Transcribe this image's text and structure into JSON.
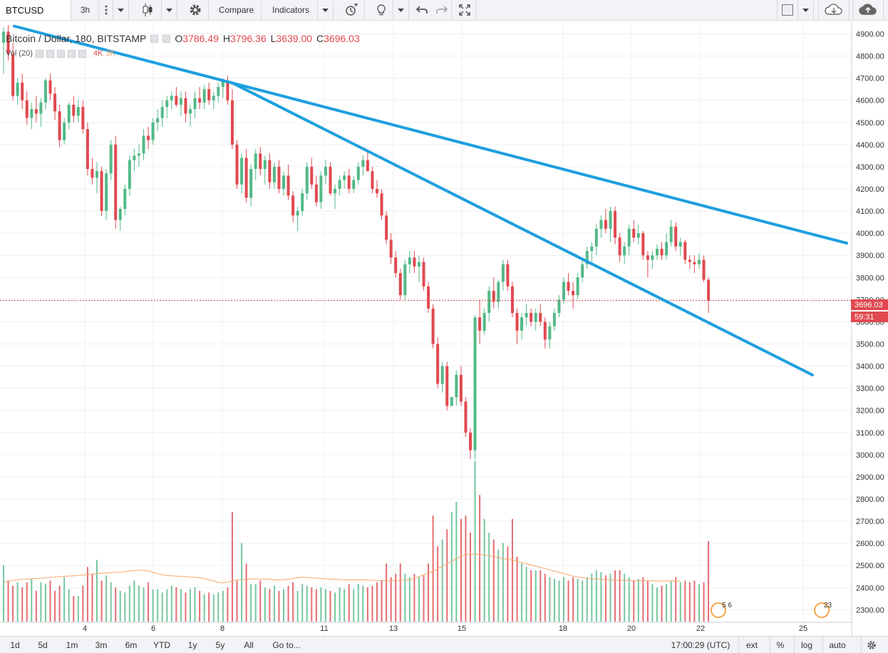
{
  "colors": {
    "up": "#53b987",
    "down": "#e0494f",
    "trend": "#1e9fde",
    "ma": "#f6a66a",
    "grid": "#eef0f3",
    "axis": "#333333"
  },
  "toolbar": {
    "symbol": "BTCUSD",
    "interval": "3h",
    "compare_label": "Compare",
    "indicators_label": "Indicators",
    "icons": [
      "more-icon",
      "dropdown-icon",
      "candles-icon",
      "settings-icon",
      "alert-icon",
      "lightbulb-icon",
      "undo-icon",
      "redo-icon",
      "fullscreen-icon",
      "layout-icon",
      "cloud-download-icon",
      "cloud-upload-icon"
    ]
  },
  "legend": {
    "title": "Bitcoin / Dollar, 180, BITSTAMP",
    "o_label": "O",
    "o": "3786.49",
    "h_label": "H",
    "h": "3796.36",
    "l_label": "L",
    "l": "3639.00",
    "c_label": "C",
    "c": "3696.03",
    "vol_label": "Vol (20)",
    "vol_a": "4K",
    "vol_b": "3K"
  },
  "price_axis": {
    "ticks": [
      4900,
      4800,
      4700,
      4600,
      4500,
      4400,
      4300,
      4200,
      4100,
      4000,
      3900,
      3800,
      3700,
      3600,
      3500,
      3400,
      3300,
      3200,
      3100,
      3000,
      2900,
      2800,
      2700,
      2600,
      2500,
      2400,
      2300
    ],
    "tick_labels": [
      "4900.00",
      "4800.00",
      "4700.00",
      "4600.00",
      "4500.00",
      "4400.00",
      "4300.00",
      "4200.00",
      "4100.00",
      "4000.00",
      "3900.00",
      "3800.00",
      "3700.00",
      "3600.00",
      "3500.00",
      "3400.00",
      "3300.00",
      "3200.00",
      "3100.00",
      "3000.00",
      "2900.00",
      "2800.00",
      "2700.00",
      "2600.00",
      "2500.00",
      "2400.00",
      "2300.00"
    ],
    "last_price": "3696.03",
    "countdown": "59:31"
  },
  "time_axis": {
    "labels": [
      "4",
      "6",
      "8",
      "11",
      "13",
      "15",
      "18",
      "20",
      "22",
      "25"
    ]
  },
  "events": [
    {
      "count": "5 6"
    },
    {
      "count": "23"
    }
  ],
  "bottombar": {
    "ranges": [
      "1d",
      "5d",
      "1m",
      "3m",
      "6m",
      "YTD",
      "1y",
      "5y",
      "All"
    ],
    "goto_label": "Go to...",
    "time_label": "17:00:29 (UTC)",
    "ext_label": "ext",
    "percent_label": "%",
    "log_label": "log",
    "auto_label": "auto"
  },
  "chart_data": {
    "type": "candlestick",
    "symbol": "BTCUSD",
    "interval": "180",
    "price_range": [
      2270,
      4960
    ],
    "candles": [
      [
        4860,
        4930,
        4720,
        4910,
        330
      ],
      [
        4910,
        4940,
        4780,
        4810,
        240
      ],
      [
        4810,
        4860,
        4600,
        4620,
        210
      ],
      [
        4620,
        4700,
        4580,
        4680,
        230
      ],
      [
        4680,
        4720,
        4560,
        4600,
        200
      ],
      [
        4600,
        4640,
        4490,
        4520,
        230
      ],
      [
        4520,
        4590,
        4470,
        4560,
        250
      ],
      [
        4560,
        4620,
        4500,
        4540,
        180
      ],
      [
        4540,
        4610,
        4480,
        4590,
        230
      ],
      [
        4590,
        4700,
        4560,
        4690,
        220
      ],
      [
        4690,
        4720,
        4600,
        4630,
        240
      ],
      [
        4630,
        4660,
        4510,
        4550,
        180
      ],
      [
        4550,
        4580,
        4390,
        4420,
        210
      ],
      [
        4420,
        4520,
        4400,
        4500,
        260
      ],
      [
        4500,
        4590,
        4470,
        4580,
        190
      ],
      [
        4580,
        4620,
        4500,
        4530,
        150
      ],
      [
        4530,
        4600,
        4500,
        4570,
        150
      ],
      [
        4570,
        4600,
        4450,
        4470,
        210
      ],
      [
        4470,
        4500,
        4260,
        4290,
        320
      ],
      [
        4290,
        4340,
        4220,
        4250,
        280
      ],
      [
        4250,
        4320,
        4180,
        4280,
        360
      ],
      [
        4280,
        4300,
        4080,
        4100,
        240
      ],
      [
        4100,
        4290,
        4060,
        4270,
        270
      ],
      [
        4270,
        4420,
        4240,
        4400,
        230
      ],
      [
        4400,
        4440,
        4020,
        4060,
        200
      ],
      [
        4060,
        4120,
        4010,
        4110,
        180
      ],
      [
        4110,
        4220,
        4080,
        4200,
        170
      ],
      [
        4200,
        4350,
        4170,
        4330,
        210
      ],
      [
        4330,
        4380,
        4280,
        4350,
        240
      ],
      [
        4350,
        4400,
        4300,
        4360,
        210
      ],
      [
        4360,
        4470,
        4330,
        4440,
        200
      ],
      [
        4440,
        4480,
        4380,
        4420,
        230
      ],
      [
        4420,
        4520,
        4400,
        4500,
        190
      ],
      [
        4500,
        4560,
        4460,
        4520,
        190
      ],
      [
        4520,
        4600,
        4480,
        4570,
        170
      ],
      [
        4570,
        4620,
        4520,
        4600,
        190
      ],
      [
        4600,
        4640,
        4560,
        4620,
        210
      ],
      [
        4620,
        4660,
        4570,
        4580,
        200
      ],
      [
        4580,
        4640,
        4530,
        4610,
        190
      ],
      [
        4610,
        4640,
        4500,
        4540,
        170
      ],
      [
        4540,
        4580,
        4480,
        4560,
        190
      ],
      [
        4560,
        4640,
        4520,
        4610,
        200
      ],
      [
        4610,
        4660,
        4560,
        4590,
        180
      ],
      [
        4590,
        4670,
        4560,
        4650,
        160
      ],
      [
        4650,
        4680,
        4580,
        4600,
        170
      ],
      [
        4600,
        4640,
        4560,
        4620,
        160
      ],
      [
        4620,
        4680,
        4590,
        4660,
        170
      ],
      [
        4660,
        4700,
        4610,
        4690,
        180
      ],
      [
        4690,
        4710,
        4580,
        4600,
        200
      ],
      [
        4600,
        4650,
        4380,
        4400,
        640
      ],
      [
        4400,
        4420,
        4200,
        4220,
        240
      ],
      [
        4220,
        4360,
        4180,
        4340,
        460
      ],
      [
        4340,
        4380,
        4140,
        4160,
        340
      ],
      [
        4160,
        4310,
        4120,
        4290,
        220
      ],
      [
        4290,
        4380,
        4240,
        4360,
        220
      ],
      [
        4360,
        4390,
        4260,
        4290,
        240
      ],
      [
        4290,
        4350,
        4220,
        4330,
        200
      ],
      [
        4330,
        4360,
        4200,
        4230,
        190
      ],
      [
        4230,
        4320,
        4200,
        4300,
        210
      ],
      [
        4300,
        4330,
        4180,
        4200,
        180
      ],
      [
        4200,
        4280,
        4170,
        4260,
        190
      ],
      [
        4260,
        4310,
        4150,
        4170,
        210
      ],
      [
        4170,
        4190,
        4050,
        4080,
        230
      ],
      [
        4080,
        4120,
        4010,
        4100,
        180
      ],
      [
        4100,
        4200,
        4080,
        4180,
        220
      ],
      [
        4180,
        4320,
        4150,
        4300,
        210
      ],
      [
        4300,
        4340,
        4200,
        4220,
        200
      ],
      [
        4220,
        4260,
        4120,
        4140,
        190
      ],
      [
        4140,
        4280,
        4110,
        4260,
        200
      ],
      [
        4260,
        4330,
        4220,
        4300,
        190
      ],
      [
        4300,
        4320,
        4170,
        4180,
        180
      ],
      [
        4180,
        4220,
        4110,
        4200,
        170
      ],
      [
        4200,
        4260,
        4170,
        4240,
        200
      ],
      [
        4240,
        4280,
        4200,
        4260,
        190
      ],
      [
        4260,
        4290,
        4180,
        4200,
        220
      ],
      [
        4200,
        4260,
        4180,
        4240,
        190
      ],
      [
        4240,
        4320,
        4220,
        4300,
        220
      ],
      [
        4300,
        4350,
        4260,
        4330,
        210
      ],
      [
        4330,
        4370,
        4280,
        4280,
        200
      ],
      [
        4280,
        4300,
        4180,
        4200,
        210
      ],
      [
        4200,
        4240,
        4160,
        4180,
        230
      ],
      [
        4180,
        4200,
        4060,
        4080,
        240
      ],
      [
        4080,
        4100,
        3950,
        3970,
        340
      ],
      [
        3970,
        4000,
        3860,
        3890,
        260
      ],
      [
        3890,
        3920,
        3800,
        3820,
        280
      ],
      [
        3820,
        3840,
        3700,
        3720,
        340
      ],
      [
        3720,
        3880,
        3700,
        3860,
        280
      ],
      [
        3860,
        3920,
        3820,
        3890,
        260
      ],
      [
        3890,
        3920,
        3820,
        3850,
        280
      ],
      [
        3850,
        3900,
        3780,
        3870,
        260
      ],
      [
        3870,
        3890,
        3740,
        3760,
        270
      ],
      [
        3760,
        3780,
        3640,
        3660,
        340
      ],
      [
        3660,
        3680,
        3480,
        3500,
        620
      ],
      [
        3500,
        3530,
        3300,
        3320,
        440
      ],
      [
        3320,
        3420,
        3280,
        3400,
        480
      ],
      [
        3400,
        3420,
        3200,
        3220,
        540
      ],
      [
        3220,
        3260,
        3220,
        3260,
        640
      ],
      [
        3260,
        3380,
        3220,
        3360,
        700
      ],
      [
        3360,
        3400,
        3220,
        3240,
        600
      ],
      [
        3240,
        3260,
        3080,
        3100,
        620
      ],
      [
        3100,
        3120,
        2980,
        3020,
        520
      ],
      [
        3020,
        3630,
        2980,
        3620,
        940
      ],
      [
        3620,
        3700,
        3500,
        3560,
        740
      ],
      [
        3560,
        3660,
        3540,
        3640,
        600
      ],
      [
        3640,
        3760,
        3600,
        3740,
        520
      ],
      [
        3740,
        3800,
        3660,
        3690,
        480
      ],
      [
        3690,
        3790,
        3660,
        3780,
        420
      ],
      [
        3780,
        3880,
        3740,
        3860,
        460
      ],
      [
        3860,
        3880,
        3740,
        3760,
        440
      ],
      [
        3760,
        3780,
        3620,
        3640,
        600
      ],
      [
        3640,
        3660,
        3500,
        3560,
        380
      ],
      [
        3560,
        3640,
        3520,
        3620,
        340
      ],
      [
        3620,
        3680,
        3580,
        3640,
        320
      ],
      [
        3640,
        3660,
        3580,
        3600,
        300
      ],
      [
        3600,
        3660,
        3560,
        3640,
        300
      ],
      [
        3640,
        3680,
        3580,
        3600,
        300
      ],
      [
        3600,
        3620,
        3480,
        3520,
        280
      ],
      [
        3520,
        3600,
        3480,
        3580,
        260
      ],
      [
        3580,
        3660,
        3560,
        3640,
        250
      ],
      [
        3640,
        3720,
        3620,
        3700,
        240
      ],
      [
        3700,
        3800,
        3680,
        3780,
        260
      ],
      [
        3780,
        3820,
        3720,
        3740,
        240
      ],
      [
        3740,
        3780,
        3660,
        3720,
        260
      ],
      [
        3720,
        3820,
        3700,
        3800,
        250
      ],
      [
        3800,
        3880,
        3780,
        3860,
        240
      ],
      [
        3860,
        3940,
        3840,
        3920,
        260
      ],
      [
        3920,
        3960,
        3870,
        3940,
        280
      ],
      [
        3940,
        4040,
        3900,
        4020,
        300
      ],
      [
        4020,
        4080,
        3980,
        4060,
        290
      ],
      [
        4060,
        4110,
        4000,
        4020,
        270
      ],
      [
        4020,
        4120,
        3960,
        4100,
        280
      ],
      [
        4100,
        4120,
        3950,
        3980,
        300
      ],
      [
        3980,
        4000,
        3870,
        3900,
        300
      ],
      [
        3900,
        3960,
        3860,
        3940,
        280
      ],
      [
        3940,
        4040,
        3900,
        4020,
        260
      ],
      [
        4020,
        4060,
        3960,
        3980,
        240
      ],
      [
        3980,
        4040,
        3950,
        4000,
        250
      ],
      [
        4000,
        4010,
        3880,
        3900,
        260
      ],
      [
        3900,
        3920,
        3800,
        3880,
        240
      ],
      [
        3880,
        3920,
        3840,
        3900,
        220
      ],
      [
        3900,
        3950,
        3880,
        3930,
        200
      ],
      [
        3930,
        3960,
        3880,
        3900,
        210
      ],
      [
        3900,
        4000,
        3880,
        3960,
        220
      ],
      [
        3960,
        4060,
        3940,
        4030,
        240
      ],
      [
        4030,
        4050,
        3920,
        3940,
        260
      ],
      [
        3940,
        3980,
        3900,
        3960,
        230
      ],
      [
        3960,
        3970,
        3860,
        3880,
        240
      ],
      [
        3880,
        3900,
        3840,
        3870,
        230
      ],
      [
        3870,
        3900,
        3820,
        3860,
        240
      ],
      [
        3860,
        3910,
        3840,
        3880,
        220
      ],
      [
        3880,
        3900,
        3780,
        3790,
        230
      ],
      [
        3790,
        3800,
        3640,
        3696,
        470
      ]
    ],
    "volume_ma": [
      320,
      330,
      335,
      340,
      342,
      345,
      348,
      350,
      352,
      355,
      360,
      362,
      365,
      368,
      370,
      372,
      375,
      378,
      380,
      385,
      390,
      392,
      395,
      398,
      400,
      402,
      405,
      410,
      415,
      418,
      416,
      410,
      400,
      390,
      380,
      375,
      372,
      370,
      368,
      365,
      362,
      360,
      355,
      350,
      340,
      330,
      320,
      315,
      320,
      330,
      338,
      342,
      345,
      346,
      346,
      346,
      345,
      343,
      340,
      338,
      340,
      345,
      350,
      356,
      360,
      358,
      355,
      352,
      350,
      348,
      346,
      344,
      342,
      340,
      340,
      340,
      340,
      340,
      338,
      336,
      334,
      333,
      332,
      332,
      333,
      334,
      336,
      340,
      350,
      365,
      380,
      395,
      410,
      430,
      450,
      470,
      490,
      510,
      530,
      545,
      550,
      548,
      545,
      540,
      535,
      528,
      520,
      512,
      505,
      498,
      490,
      480,
      470,
      460,
      450,
      440,
      430,
      420,
      410,
      400,
      390,
      380,
      370,
      362,
      356,
      352,
      348,
      346,
      344,
      342,
      340,
      338,
      336,
      335,
      334,
      333,
      333,
      332,
      332,
      331,
      330,
      330,
      330,
      330,
      330,
      330
    ],
    "trendlines": [
      {
        "from": [
          "start",
          4935
        ],
        "to": [
          "end",
          3955
        ]
      },
      {
        "from": [
          "8",
          4680
        ],
        "to": [
          "end",
          3360
        ]
      }
    ]
  }
}
